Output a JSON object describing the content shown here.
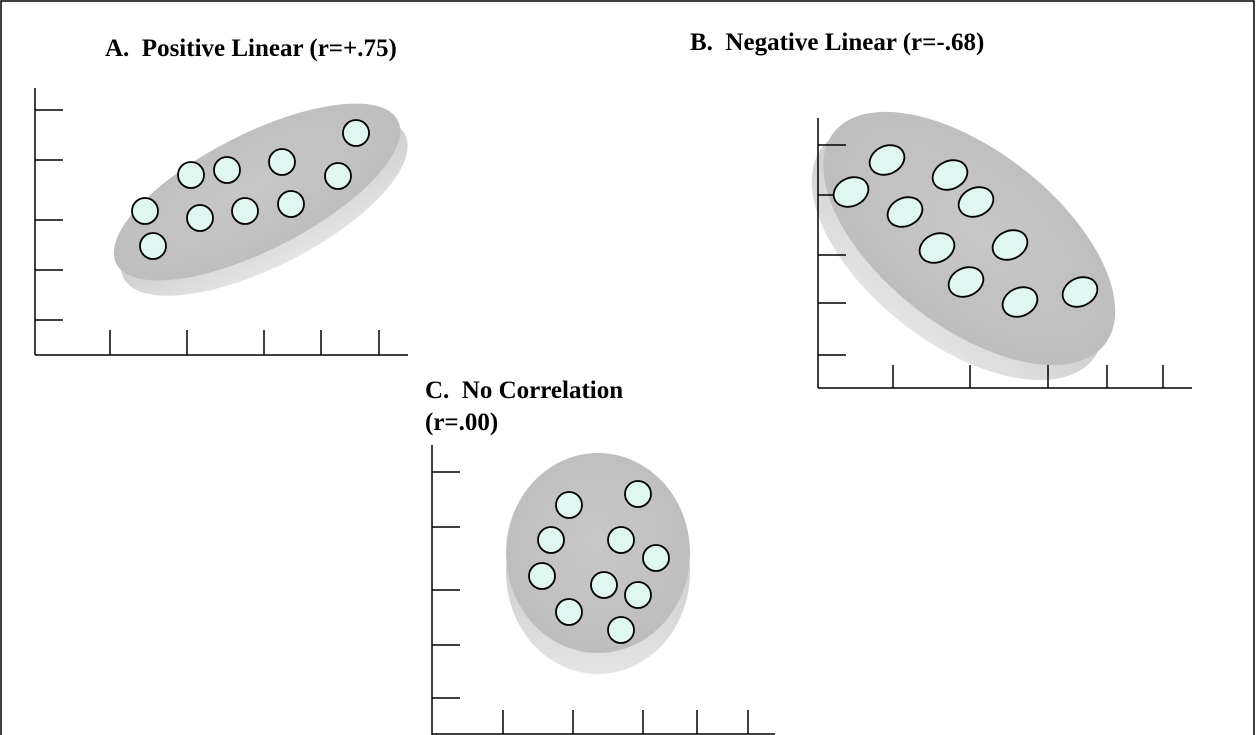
{
  "panels": [
    {
      "title": "A.  Positive Linear (r=+.75)"
    },
    {
      "title": "B.  Negative Linear (r=-.68)"
    },
    {
      "title": "C.  No Correlation",
      "title_line2": "(r=.00)"
    }
  ]
}
